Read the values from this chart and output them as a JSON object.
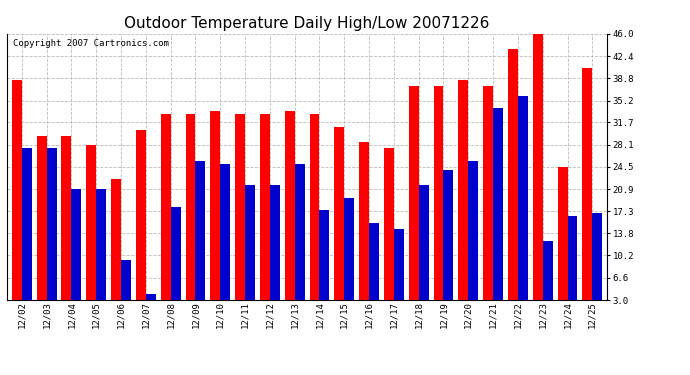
{
  "title": "Outdoor Temperature Daily High/Low 20071226",
  "copyright": "Copyright 2007 Cartronics.com",
  "dates": [
    "12/02",
    "12/03",
    "12/04",
    "12/05",
    "12/06",
    "12/07",
    "12/08",
    "12/09",
    "12/10",
    "12/11",
    "12/12",
    "12/13",
    "12/14",
    "12/15",
    "12/16",
    "12/17",
    "12/18",
    "12/19",
    "12/20",
    "12/21",
    "12/22",
    "12/23",
    "12/24",
    "12/25"
  ],
  "highs": [
    38.5,
    29.5,
    29.5,
    28.0,
    22.5,
    30.5,
    33.0,
    33.0,
    33.5,
    33.0,
    33.0,
    33.5,
    33.0,
    31.0,
    28.5,
    27.5,
    37.5,
    37.5,
    38.5,
    37.5,
    43.5,
    46.0,
    24.5,
    40.5
  ],
  "lows": [
    27.5,
    27.5,
    21.0,
    21.0,
    9.5,
    4.0,
    18.0,
    25.5,
    25.0,
    21.5,
    21.5,
    25.0,
    17.5,
    19.5,
    15.5,
    14.5,
    21.5,
    24.0,
    25.5,
    34.0,
    36.0,
    12.5,
    16.5,
    17.0
  ],
  "high_color": "#ff0000",
  "low_color": "#0000cc",
  "background_color": "#ffffff",
  "plot_background": "#ffffff",
  "grid_color": "#bbbbbb",
  "ymin": 3.0,
  "ymax": 46.0,
  "yticks": [
    3.0,
    6.6,
    10.2,
    13.8,
    17.3,
    20.9,
    24.5,
    28.1,
    31.7,
    35.2,
    38.8,
    42.4,
    46.0
  ],
  "title_fontsize": 11,
  "copyright_fontsize": 6.5,
  "tick_fontsize": 6.5,
  "bar_width": 0.4
}
